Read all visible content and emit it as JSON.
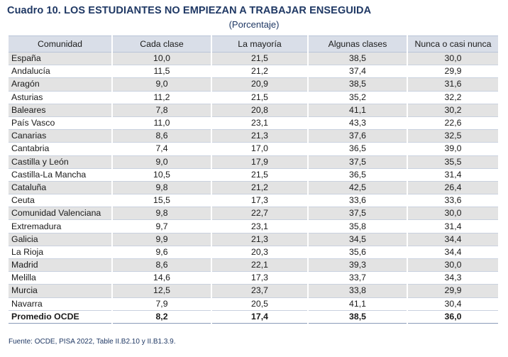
{
  "title": "Cuadro 10. LOS ESTUDIANTES NO EMPIEZAN A TRABAJAR ENSEGUIDA",
  "subtitle": "(Porcentaje)",
  "columns": [
    "Comunidad",
    "Cada clase",
    "La mayoría",
    "Algunas clases",
    "Nunca o casi nunca"
  ],
  "rows": [
    [
      "España",
      "10,0",
      "21,5",
      "38,5",
      "30,0"
    ],
    [
      "Andalucía",
      "11,5",
      "21,2",
      "37,4",
      "29,9"
    ],
    [
      "Aragón",
      "9,0",
      "20,9",
      "38,5",
      "31,6"
    ],
    [
      "Asturias",
      "11,2",
      "21,5",
      "35,2",
      "32,2"
    ],
    [
      "Baleares",
      "7,8",
      "20,8",
      "41,1",
      "30,2"
    ],
    [
      "País Vasco",
      "11,0",
      "23,1",
      "43,3",
      "22,6"
    ],
    [
      "Canarias",
      "8,6",
      "21,3",
      "37,6",
      "32,5"
    ],
    [
      "Cantabria",
      "7,4",
      "17,0",
      "36,5",
      "39,0"
    ],
    [
      "Castilla y León",
      "9,0",
      "17,9",
      "37,5",
      "35,5"
    ],
    [
      "Castilla-La Mancha",
      "10,5",
      "21,5",
      "36,5",
      "31,4"
    ],
    [
      "Cataluña",
      "9,8",
      "21,2",
      "42,5",
      "26,4"
    ],
    [
      "Ceuta",
      "15,5",
      "17,3",
      "33,6",
      "33,6"
    ],
    [
      "Comunidad Valenciana",
      "9,8",
      "22,7",
      "37,5",
      "30,0"
    ],
    [
      "Extremadura",
      "9,7",
      "23,1",
      "35,8",
      "31,4"
    ],
    [
      "Galicia",
      "9,9",
      "21,3",
      "34,5",
      "34,4"
    ],
    [
      "La Rioja",
      "9,6",
      "20,3",
      "35,6",
      "34,4"
    ],
    [
      "Madrid",
      "8,6",
      "22,1",
      "39,3",
      "30,0"
    ],
    [
      "Melilla",
      "14,6",
      "17,3",
      "33,7",
      "34,3"
    ],
    [
      "Murcia",
      "12,5",
      "23,7",
      "33,8",
      "29,9"
    ],
    [
      "Navarra",
      "7,9",
      "20,5",
      "41,1",
      "30,4"
    ]
  ],
  "average_row": [
    "Promedio OCDE",
    "8,2",
    "17,4",
    "38,5",
    "36,0"
  ],
  "source": "Fuente: OCDE, PISA 2022, Table II.B2.10 y II.B1.3.9.",
  "colors": {
    "title": "#1f3864",
    "header_bg": "#d9dee8",
    "stripe_bg": "#e3e3e3"
  }
}
